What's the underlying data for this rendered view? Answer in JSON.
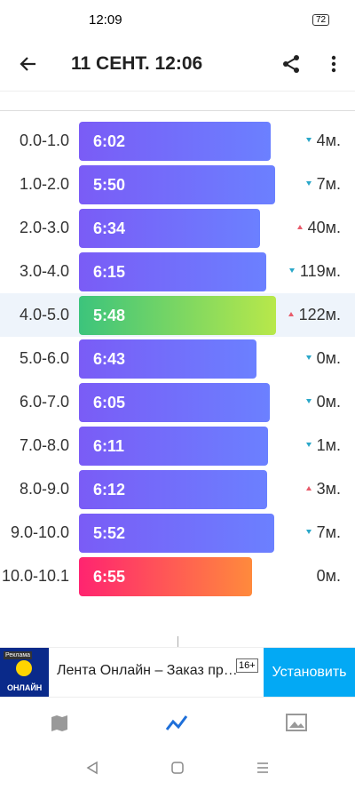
{
  "status_bar": {
    "time": "12:09",
    "battery": "72"
  },
  "header": {
    "title": "11 СЕНТ. 12:06"
  },
  "splits": [
    {
      "range": "0.0-1.0",
      "pace": "6:02",
      "elevation": "4м.",
      "trend": "down"
    },
    {
      "range": "1.0-2.0",
      "pace": "5:50",
      "elevation": "7м.",
      "trend": "down"
    },
    {
      "range": "2.0-3.0",
      "pace": "6:34",
      "elevation": "40м.",
      "trend": "up"
    },
    {
      "range": "3.0-4.0",
      "pace": "6:15",
      "elevation": "119м.",
      "trend": "down"
    },
    {
      "range": "4.0-5.0",
      "pace": "5:48",
      "elevation": "122м.",
      "trend": "up",
      "highlight": "fastest"
    },
    {
      "range": "5.0-6.0",
      "pace": "6:43",
      "elevation": "0м.",
      "trend": "down"
    },
    {
      "range": "6.0-7.0",
      "pace": "6:05",
      "elevation": "0м.",
      "trend": "down"
    },
    {
      "range": "7.0-8.0",
      "pace": "6:11",
      "elevation": "1м.",
      "trend": "down"
    },
    {
      "range": "8.0-9.0",
      "pace": "6:12",
      "elevation": "3м.",
      "trend": "up"
    },
    {
      "range": "9.0-10.0",
      "pace": "5:52",
      "elevation": "7м.",
      "trend": "down"
    },
    {
      "range": "10.0-10.1",
      "pace": "6:55",
      "elevation": "0м.",
      "trend": "none",
      "highlight": "slowest"
    }
  ],
  "ad": {
    "badge": "Реклама",
    "brand": "ОНЛАЙН",
    "text": "Лента Онлайн – Заказ пр…",
    "age": "16+",
    "button": "Установить"
  }
}
